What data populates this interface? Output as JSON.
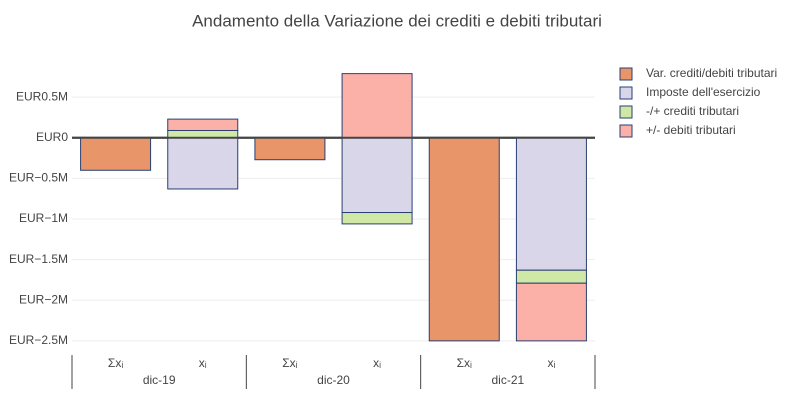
{
  "chart_data": {
    "type": "bar",
    "barmode": "relative",
    "title": "Andamento della Variazione dei crediti e debiti tributari",
    "groups": [
      "dic-19",
      "dic-20",
      "dic-21"
    ],
    "categories": [
      "Σxᵢ",
      "xᵢ",
      "Σxᵢ",
      "xᵢ",
      "Σxᵢ",
      "xᵢ"
    ],
    "series": [
      {
        "name": "Var. crediti/debiti tributari",
        "color": "#e8956a",
        "values": [
          -400000,
          null,
          -270000,
          null,
          -2500000,
          null
        ]
      },
      {
        "name": "Imposte dell'esercizio",
        "color": "#d9d6ea",
        "values": [
          null,
          -630000,
          null,
          -920000,
          null,
          -1630000
        ]
      },
      {
        "name": "-/+ crediti tributari",
        "color": "#cfe8a6",
        "values": [
          null,
          90000,
          null,
          -140000,
          null,
          -160000
        ]
      },
      {
        "name": "+/- debiti tributari",
        "color": "#fbb1a8",
        "values": [
          null,
          140000,
          null,
          790000,
          null,
          -710000
        ]
      }
    ],
    "ylim": [
      -2600000,
      970000
    ],
    "yticks": [
      {
        "value": -2500000,
        "label": "EUR−2.5M"
      },
      {
        "value": -2000000,
        "label": "EUR−2M"
      },
      {
        "value": -1500000,
        "label": "EUR−1.5M"
      },
      {
        "value": -1000000,
        "label": "EUR−1M"
      },
      {
        "value": -500000,
        "label": "EUR−0.5M"
      },
      {
        "value": 0,
        "label": "EUR0"
      },
      {
        "value": 500000,
        "label": "EUR0.5M"
      }
    ],
    "grid": true,
    "legend": "right"
  }
}
